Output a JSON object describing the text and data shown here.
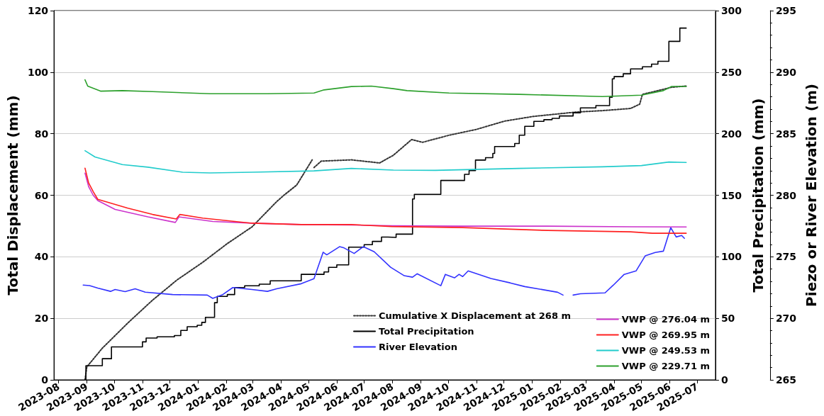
{
  "chart_data": {
    "type": "line",
    "ylabel": "Total Displacement (mm)",
    "y2label": "Total Precipitation (mm)",
    "y3label": "Piezo or River Elevation (m)",
    "xlim": [
      "2023-07-27",
      "2025-07-21"
    ],
    "xticks": [
      "2023-08",
      "2023-09",
      "2023-10",
      "2023-11",
      "2023-12",
      "2024-01",
      "2024-02",
      "2024-03",
      "2024-04",
      "2024-05",
      "2024-06",
      "2024-07",
      "2024-08",
      "2024-09",
      "2024-10",
      "2024-11",
      "2024-12",
      "2025-01",
      "2025-02",
      "2025-03",
      "2025-04",
      "2025-05",
      "2025-06",
      "2025-07"
    ],
    "ylim": [
      0,
      120
    ],
    "yticks": [
      0,
      20,
      40,
      60,
      80,
      100,
      120
    ],
    "y2lim": [
      0,
      300
    ],
    "y2ticks": [
      0,
      50,
      100,
      150,
      200,
      250,
      300
    ],
    "y3lim": [
      265,
      295
    ],
    "y3ticks": [
      265,
      270,
      275,
      280,
      285,
      290,
      295
    ],
    "grid": "y",
    "legend": "bottom right",
    "marker": "none",
    "series": [
      {
        "name": "Cumulative X Displacement at 268 m",
        "color": "#333333",
        "line_style": "dotted",
        "x": [
          "2023-08-30",
          "2023-09-01",
          "2023-09-18",
          "2023-10-16",
          "2023-11-12",
          "2023-12-09",
          "2024-01-06",
          "2024-02-02",
          "2024-02-29",
          "2024-03-27",
          "2024-04-04",
          "2024-04-18",
          "2024-05-05",
          "2024-05-06",
          "2024-05-07",
          "2024-05-15",
          "2024-06-17",
          "2024-07-18",
          "2024-08-02",
          "2024-08-22",
          "2024-09-03",
          "2024-10-02",
          "2024-11-01",
          "2024-12-02",
          "2025-01-02",
          "2025-02-17",
          "2025-03-19",
          "2025-04-19",
          "2025-04-29",
          "2025-05-02",
          "2025-05-19",
          "2025-06-03",
          "2025-06-19"
        ],
        "values": [
          0,
          4.2,
          10.3,
          18.5,
          25.9,
          32.5,
          38.2,
          44.3,
          49.7,
          57.9,
          60,
          63.3,
          71.5,
          null,
          69,
          71.1,
          71.5,
          70.5,
          73,
          78.1,
          77.2,
          79.5,
          81.4,
          84.1,
          85.6,
          87,
          87.5,
          88.2,
          89.6,
          92.8,
          94,
          95.1,
          95.5
        ]
      },
      {
        "name": "Total Precipitation",
        "type": "step",
        "axis": "y2",
        "color": "#000000",
        "x": [
          "2023-08-30",
          "2023-08-31",
          "2023-09-18",
          "2023-09-28",
          "2023-11-01",
          "2023-11-05",
          "2023-11-17",
          "2023-12-06",
          "2023-12-13",
          "2023-12-20",
          "2023-12-31",
          "2024-01-05",
          "2024-01-09",
          "2024-01-19",
          "2024-01-22",
          "2024-02-02",
          "2024-02-10",
          "2024-02-21",
          "2024-03-08",
          "2024-03-20",
          "2024-04-23",
          "2024-05-18",
          "2024-05-23",
          "2024-06-01",
          "2024-06-14",
          "2024-07-01",
          "2024-07-10",
          "2024-07-20",
          "2024-07-27",
          "2024-08-05",
          "2024-08-23",
          "2024-08-25",
          "2024-09-23",
          "2024-10-19",
          "2024-10-24",
          "2024-10-31",
          "2024-11-11",
          "2024-11-19",
          "2024-11-21",
          "2024-12-13",
          "2024-12-18",
          "2024-12-24",
          "2025-01-03",
          "2025-01-14",
          "2025-01-23",
          "2025-01-31",
          "2025-02-15",
          "2025-02-23",
          "2025-03-12",
          "2025-03-27",
          "2025-03-30",
          "2025-04-01",
          "2025-04-11",
          "2025-04-19",
          "2025-05-02",
          "2025-05-12",
          "2025-05-19",
          "2025-05-31",
          "2025-06-12",
          "2025-06-19"
        ],
        "values": [
          0,
          11.5,
          17.2,
          26.8,
          30.9,
          34,
          35,
          36,
          40.2,
          43.2,
          44.3,
          46.7,
          50.8,
          62.7,
          67.8,
          69.3,
          75,
          76.4,
          77.7,
          80.5,
          85.7,
          87.7,
          91.4,
          93.4,
          107.8,
          109.8,
          112.5,
          116,
          115.7,
          118.4,
          147,
          150.7,
          162,
          167,
          170,
          178.6,
          180.5,
          184,
          189.6,
          192,
          198.8,
          206,
          210,
          211.4,
          212.5,
          214.4,
          217,
          221,
          222.8,
          229.7,
          244.6,
          246.4,
          248.7,
          252.6,
          254.4,
          256.5,
          258.8,
          275,
          285.8,
          285.8
        ]
      },
      {
        "name": "River Elevation",
        "axis": "y3",
        "color": "#3333ff",
        "x": [
          "2023-08-28",
          "2023-09-04",
          "2023-09-13",
          "2023-09-27",
          "2023-10-02",
          "2023-10-13",
          "2023-10-24",
          "2023-11-04",
          "2023-12-04",
          "2024-01-11",
          "2024-01-17",
          "2024-01-28",
          "2024-02-08",
          "2024-02-29",
          "2024-03-17",
          "2024-03-27",
          "2024-04-23",
          "2024-05-07",
          "2024-05-17",
          "2024-05-21",
          "2024-06-04",
          "2024-06-09",
          "2024-06-20",
          "2024-06-30",
          "2024-07-12",
          "2024-07-30",
          "2024-08-14",
          "2024-08-23",
          "2024-08-28",
          "2024-09-23",
          "2024-09-28",
          "2024-10-08",
          "2024-10-13",
          "2024-10-17",
          "2024-10-23",
          "2024-11-17",
          "2024-12-08",
          "2024-12-24",
          "2025-01-29",
          "2025-02-04",
          "2025-02-10",
          "2025-02-15",
          "2025-02-23",
          "2025-03-22",
          "2025-03-31",
          "2025-04-12",
          "2025-04-25",
          "2025-05-05",
          "2025-05-16",
          "2025-05-25",
          "2025-06-02",
          "2025-06-08",
          "2025-06-14",
          "2025-06-17"
        ],
        "values": [
          272.7,
          272.66,
          272.46,
          272.19,
          272.34,
          272.17,
          272.4,
          272.13,
          271.93,
          271.89,
          271.62,
          271.93,
          272.5,
          272.34,
          272.19,
          272.4,
          272.81,
          273.22,
          275.37,
          275.16,
          275.82,
          275.72,
          275.27,
          275.82,
          275.41,
          274.15,
          273.46,
          273.34,
          273.62,
          272.65,
          273.57,
          273.29,
          273.57,
          273.39,
          273.85,
          273.23,
          272.88,
          272.58,
          272.12,
          271.89,
          null,
          271.89,
          272,
          272.07,
          272.69,
          273.57,
          273.85,
          275.07,
          275.35,
          275.46,
          277.37,
          276.61,
          276.73,
          276.5
        ]
      },
      {
        "name": "VWP @ 276.04 m",
        "axis": "y3",
        "color": "#cc33cc",
        "x": [
          "2023-08-30",
          "2023-09-03",
          "2023-09-08",
          "2023-09-13",
          "2023-10-02",
          "2023-11-07",
          "2023-12-07",
          "2023-12-11",
          "2024-01-17",
          "2024-02-29",
          "2024-04-23",
          "2024-06-17",
          "2024-07-31",
          "2024-10-17",
          "2025-01-18",
          "2025-04-19",
          "2025-06-19"
        ],
        "values": [
          281.8,
          280.7,
          280,
          279.57,
          278.85,
          278.24,
          277.79,
          278.24,
          277.87,
          277.73,
          277.62,
          277.58,
          277.52,
          277.49,
          277.49,
          277.44,
          277.42
        ]
      },
      {
        "name": "VWP @ 269.95 m",
        "axis": "y3",
        "color": "#ff2020",
        "x": [
          "2023-08-30",
          "2023-09-03",
          "2023-09-08",
          "2023-09-13",
          "2023-10-16",
          "2023-11-12",
          "2023-12-08",
          "2023-12-12",
          "2024-01-06",
          "2024-02-29",
          "2024-04-23",
          "2024-06-17",
          "2024-07-31",
          "2024-10-17",
          "2025-01-18",
          "2025-04-19",
          "2025-05-13",
          "2025-06-19"
        ],
        "values": [
          282.2,
          281,
          280.3,
          279.67,
          278.95,
          278.44,
          278.07,
          278.44,
          278.14,
          277.73,
          277.62,
          277.62,
          277.46,
          277.37,
          277.14,
          277.03,
          276.91,
          276.91
        ]
      },
      {
        "name": "VWP @ 249.53 m",
        "axis": "y3",
        "color": "#22cccc",
        "x": [
          "2023-08-30",
          "2023-09-10",
          "2023-10-10",
          "2023-11-07",
          "2023-12-15",
          "2024-01-14",
          "2024-02-29",
          "2024-05-07",
          "2024-06-17",
          "2024-08-02",
          "2024-09-17",
          "2024-12-18",
          "2025-03-19",
          "2025-05-01",
          "2025-05-31",
          "2025-06-19"
        ],
        "values": [
          283.62,
          283.11,
          282.49,
          282.28,
          281.87,
          281.81,
          281.87,
          281.98,
          282.18,
          282.04,
          282.02,
          282.18,
          282.31,
          282.41,
          282.7,
          282.66
        ]
      },
      {
        "name": "VWP @ 229.71 m",
        "axis": "y3",
        "color": "#2ca02c",
        "x": [
          "2023-08-30",
          "2023-09-02",
          "2023-09-16",
          "2023-10-10",
          "2023-11-12",
          "2024-01-14",
          "2024-03-17",
          "2024-05-07",
          "2024-05-18",
          "2024-06-17",
          "2024-07-09",
          "2024-08-02",
          "2024-08-17",
          "2024-10-02",
          "2024-12-18",
          "2025-03-19",
          "2025-05-01",
          "2025-05-25",
          "2025-06-03",
          "2025-06-19"
        ],
        "values": [
          289.38,
          288.87,
          288.46,
          288.5,
          288.42,
          288.25,
          288.25,
          288.31,
          288.56,
          288.83,
          288.87,
          288.66,
          288.5,
          288.31,
          288.2,
          288.02,
          288.13,
          288.5,
          288.84,
          288.84
        ]
      }
    ]
  }
}
